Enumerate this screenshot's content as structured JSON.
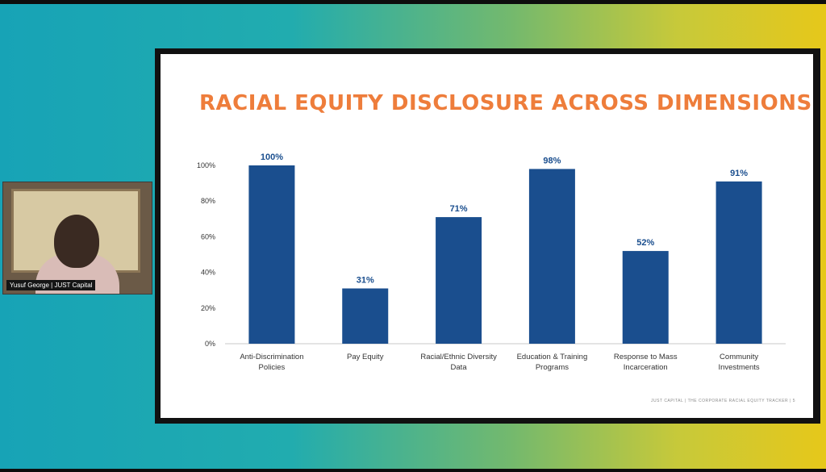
{
  "speaker": {
    "name_tag": "Yusuf George | JUST Capital"
  },
  "slide": {
    "footer": "JUST CAPITAL | THE CORPORATE RACIAL EQUITY TRACKER | 5"
  },
  "chart_data": {
    "type": "bar",
    "title": "RACIAL EQUITY DISCLOSURE ACROSS DIMENSIONS",
    "categories": [
      [
        "Anti-Discrimination",
        "Policies"
      ],
      [
        "Pay Equity"
      ],
      [
        "Racial/Ethnic Diversity",
        "Data"
      ],
      [
        "Education & Training",
        "Programs"
      ],
      [
        "Response to Mass",
        "Incarceration"
      ],
      [
        "Community",
        "Investments"
      ]
    ],
    "values": [
      100,
      31,
      71,
      98,
      52,
      91
    ],
    "data_labels": [
      "100%",
      "31%",
      "71%",
      "98%",
      "52%",
      "91%"
    ],
    "ylim": [
      0,
      100
    ],
    "yticks": [
      0,
      20,
      40,
      60,
      80,
      100
    ],
    "ytick_labels": [
      "0%",
      "20%",
      "40%",
      "60%",
      "80%",
      "100%"
    ],
    "bar_color": "#1a4e8e",
    "label_color": "#1a4e8e",
    "grid": false
  }
}
